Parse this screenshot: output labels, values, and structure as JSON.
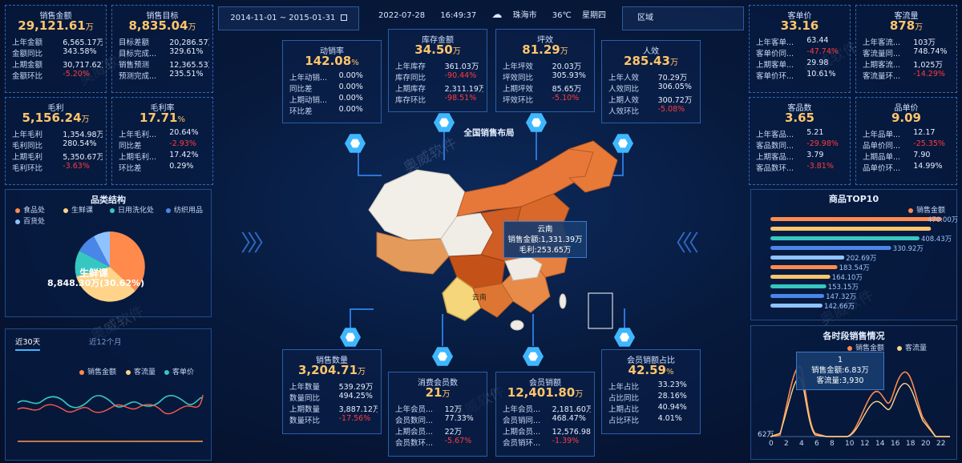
{
  "header": {
    "date_range": "2014-11-01 ~ 2015-01-31",
    "date": "2022-07-28",
    "time": "16:49:37",
    "city": "珠海市",
    "temperature": "36℃",
    "weekday": "星期四",
    "region_label": "区域"
  },
  "left_kpis": [
    {
      "title": "销售金额",
      "value": "29,121.61",
      "unit": "万",
      "rows": [
        {
          "label": "上年金额",
          "value": "6,565.17万",
          "neg": false
        },
        {
          "label": "金额同比",
          "value": "343.58%",
          "neg": false
        },
        {
          "label": "上期金额",
          "value": "30,717.62万",
          "neg": false
        },
        {
          "label": "金额环比",
          "value": "-5.20%",
          "neg": true
        }
      ]
    },
    {
      "title": "销售目标",
      "value": "8,835.04",
      "unit": "万",
      "rows": [
        {
          "label": "目标差额",
          "value": "20,286.57万",
          "neg": false
        },
        {
          "label": "目标完成...",
          "value": "329.61%",
          "neg": false
        },
        {
          "label": "销售预测",
          "value": "12,365.53万",
          "neg": false
        },
        {
          "label": "预测完成...",
          "value": "235.51%",
          "neg": false
        }
      ]
    },
    {
      "title": "毛利",
      "value": "5,156.24",
      "unit": "万",
      "rows": [
        {
          "label": "上年毛利",
          "value": "1,354.98万",
          "neg": false
        },
        {
          "label": "毛利同比",
          "value": "280.54%",
          "neg": false
        },
        {
          "label": "上期毛利",
          "value": "5,350.67万",
          "neg": false
        },
        {
          "label": "毛利环比",
          "value": "-3.63%",
          "neg": true
        }
      ]
    },
    {
      "title": "毛利率",
      "value": "17.71",
      "unit": "%",
      "rows": [
        {
          "label": "上年毛利...",
          "value": "20.64%",
          "neg": false
        },
        {
          "label": "同比差",
          "value": "-2.93%",
          "neg": true
        },
        {
          "label": "上期毛利...",
          "value": "17.42%",
          "neg": false
        },
        {
          "label": "环比差",
          "value": "0.29%",
          "neg": false
        }
      ]
    }
  ],
  "right_kpis": [
    {
      "title": "客单价",
      "value": "33.16",
      "unit": "",
      "rows": [
        {
          "label": "上年客单...",
          "value": "63.44",
          "neg": false
        },
        {
          "label": "客单价同...",
          "value": "-47.74%",
          "neg": true
        },
        {
          "label": "上期客单...",
          "value": "29.98",
          "neg": false
        },
        {
          "label": "客单价环...",
          "value": "10.61%",
          "neg": false
        }
      ]
    },
    {
      "title": "客流量",
      "value": "878",
      "unit": "万",
      "rows": [
        {
          "label": "上年客流...",
          "value": "103万",
          "neg": false
        },
        {
          "label": "客流量同...",
          "value": "748.74%",
          "neg": false
        },
        {
          "label": "上期客流...",
          "value": "1,025万",
          "neg": false
        },
        {
          "label": "客流量环...",
          "value": "-14.29%",
          "neg": true
        }
      ]
    },
    {
      "title": "客品数",
      "value": "3.65",
      "unit": "",
      "rows": [
        {
          "label": "上年客品...",
          "value": "5.21",
          "neg": false
        },
        {
          "label": "客品数同...",
          "value": "-29.98%",
          "neg": true
        },
        {
          "label": "上期客品...",
          "value": "3.79",
          "neg": false
        },
        {
          "label": "客品数环...",
          "value": "-3.81%",
          "neg": true
        }
      ]
    },
    {
      "title": "品单价",
      "value": "9.09",
      "unit": "",
      "rows": [
        {
          "label": "上年品单...",
          "value": "12.17",
          "neg": false
        },
        {
          "label": "品单价同...",
          "value": "-25.35%",
          "neg": true
        },
        {
          "label": "上期品单...",
          "value": "7.90",
          "neg": false
        },
        {
          "label": "品单价环...",
          "value": "14.99%",
          "neg": false
        }
      ]
    }
  ],
  "center_top": [
    {
      "title": "动销率",
      "value": "142.08",
      "unit": "%",
      "rows": [
        {
          "label": "上年动销...",
          "value": "0.00%",
          "neg": false
        },
        {
          "label": "同比差",
          "value": "0.00%",
          "neg": false
        },
        {
          "label": "上期动销...",
          "value": "0.00%",
          "neg": false
        },
        {
          "label": "环比差",
          "value": "0.00%",
          "neg": false
        }
      ]
    },
    {
      "title": "库存金额",
      "value": "34.50",
      "unit": "万",
      "rows": [
        {
          "label": "上年库存",
          "value": "361.03万",
          "neg": false
        },
        {
          "label": "库存同比",
          "value": "-90.44%",
          "neg": true
        },
        {
          "label": "上期库存",
          "value": "2,311.19万",
          "neg": false
        },
        {
          "label": "库存环比",
          "value": "-98.51%",
          "neg": true
        }
      ]
    },
    {
      "title": "坪效",
      "value": "81.29",
      "unit": "万",
      "rows": [
        {
          "label": "上年坪效",
          "value": "20.03万",
          "neg": false
        },
        {
          "label": "坪效同比",
          "value": "305.93%",
          "neg": false
        },
        {
          "label": "上期坪效",
          "value": "85.65万",
          "neg": false
        },
        {
          "label": "坪效环比",
          "value": "-5.10%",
          "neg": true
        }
      ]
    },
    {
      "title": "人效",
      "value": "285.43",
      "unit": "万",
      "rows": [
        {
          "label": "上年人效",
          "value": "70.29万",
          "neg": false
        },
        {
          "label": "人效同比",
          "value": "306.05%",
          "neg": false
        },
        {
          "label": "上期人效",
          "value": "300.72万",
          "neg": false
        },
        {
          "label": "人效环比",
          "value": "-5.08%",
          "neg": true
        }
      ]
    }
  ],
  "center_bottom": [
    {
      "title": "销售数量",
      "value": "3,204.71",
      "unit": "万",
      "rows": [
        {
          "label": "上年数量",
          "value": "539.29万",
          "neg": false
        },
        {
          "label": "数量同比",
          "value": "494.25%",
          "neg": false
        },
        {
          "label": "上期数量",
          "value": "3,887.12万",
          "neg": false
        },
        {
          "label": "数量环比",
          "value": "-17.56%",
          "neg": true
        }
      ]
    },
    {
      "title": "消费会员数",
      "value": "21",
      "unit": "万",
      "rows": [
        {
          "label": "上年会员...",
          "value": "12万",
          "neg": false
        },
        {
          "label": "会员数同...",
          "value": "77.33%",
          "neg": false
        },
        {
          "label": "上期会员...",
          "value": "22万",
          "neg": false
        },
        {
          "label": "会员数环...",
          "value": "-5.67%",
          "neg": true
        }
      ]
    },
    {
      "title": "会员销额",
      "value": "12,401.80",
      "unit": "万",
      "rows": [
        {
          "label": "上年会员...",
          "value": "2,181.60万",
          "neg": false
        },
        {
          "label": "会员销同...",
          "value": "468.47%",
          "neg": false
        },
        {
          "label": "上期会员...",
          "value": "12,576.98万",
          "neg": false
        },
        {
          "label": "会员销环...",
          "value": "-1.39%",
          "neg": true
        }
      ]
    },
    {
      "title": "会员销额占比",
      "value": "42.59",
      "unit": "%",
      "rows": [
        {
          "label": "上年占比",
          "value": "33.23%",
          "neg": false
        },
        {
          "label": "占比同比",
          "value": "28.16%",
          "neg": false
        },
        {
          "label": "上期占比",
          "value": "40.94%",
          "neg": false
        },
        {
          "label": "占比环比",
          "value": "4.01%",
          "neg": false
        }
      ]
    }
  ],
  "map": {
    "title": "全国销售布局",
    "tooltip": {
      "region": "云南",
      "line1": "销售金额:1,331.39万",
      "line2": "毛利:253.65万"
    },
    "province_label": "云南"
  },
  "category": {
    "title": "品类结构",
    "legend": [
      {
        "name": "食品处",
        "color": "#ff8a4c"
      },
      {
        "name": "生鲜课",
        "color": "#ffd38a"
      },
      {
        "name": "日用洗化处",
        "color": "#36c7c0"
      },
      {
        "name": "纺织用品",
        "color": "#4a86e8"
      },
      {
        "name": "百货处",
        "color": "#8fc3ff"
      }
    ],
    "pie_label_1": "生鲜课",
    "pie_label_2": "8,848.30万(30.62%)"
  },
  "trend": {
    "tab_active": "近30天",
    "tab_other": "近12个月",
    "legend": [
      {
        "name": "销售金额",
        "color": "#ff8a4c"
      },
      {
        "name": "客流量",
        "color": "#ffd38a"
      },
      {
        "name": "客单价",
        "color": "#36c7c0"
      }
    ]
  },
  "top10": {
    "title": "商品TOP10",
    "legend": "销售金额",
    "bars": [
      {
        "label": "470.00万",
        "value": 470.0,
        "color": "#ff8a4c"
      },
      {
        "label": "",
        "value": 440.0,
        "color": "#ffc56b"
      },
      {
        "label": "408.43万",
        "value": 408.43,
        "color": "#36c7c0"
      },
      {
        "label": "330.92万",
        "value": 330.92,
        "color": "#4a86e8"
      },
      {
        "label": "202.69万",
        "value": 202.69,
        "color": "#8fc3ff"
      },
      {
        "label": "183.54万",
        "value": 183.54,
        "color": "#ff8a4c"
      },
      {
        "label": "164.10万",
        "value": 164.1,
        "color": "#ffc56b"
      },
      {
        "label": "153.15万",
        "value": 153.15,
        "color": "#36c7c0"
      },
      {
        "label": "147.32万",
        "value": 147.32,
        "color": "#4a86e8"
      },
      {
        "label": "142.66万",
        "value": 142.66,
        "color": "#8fc3ff"
      }
    ]
  },
  "hourly": {
    "title": "各时段销售情况",
    "legend": [
      {
        "name": "销售金额",
        "color": "#ff8a4c"
      },
      {
        "name": "客流量",
        "color": "#ffd38a"
      }
    ],
    "tooltip": {
      "hour": "1",
      "line1": "销售金额:6.83万",
      "line2": "客流量:3,930"
    },
    "ylabel": "62万",
    "xticks": [
      "0",
      "2",
      "4",
      "6",
      "8",
      "10",
      "12",
      "14",
      "16",
      "18",
      "20",
      "22"
    ]
  },
  "watermark": {
    "brand": "奥威软件",
    "en": "Ourway Power"
  },
  "colors": {
    "accent": "#ffc56b",
    "negative": "#ff3b3b",
    "border": "#2c6ac0"
  }
}
